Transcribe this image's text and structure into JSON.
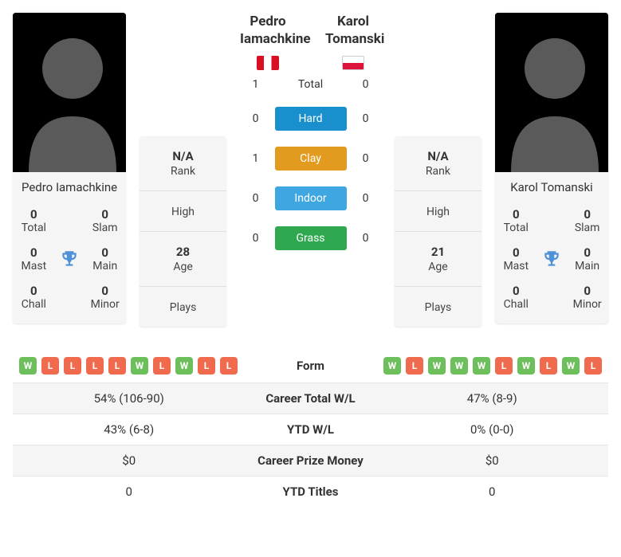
{
  "player_left": {
    "name_full": "Pedro Iamachkine",
    "flag_colors": [
      "#d91023",
      "#ffffff",
      "#d91023"
    ],
    "titles": {
      "total_num": "0",
      "total_lbl": "Total",
      "slam_num": "0",
      "slam_lbl": "Slam",
      "mast_num": "0",
      "mast_lbl": "Mast",
      "main_num": "0",
      "main_lbl": "Main",
      "chall_num": "0",
      "chall_lbl": "Chall",
      "minor_num": "0",
      "minor_lbl": "Minor"
    },
    "info": {
      "rank_val": "N/A",
      "rank_lbl": "Rank",
      "high_val": "",
      "high_lbl": "High",
      "age_val": "28",
      "age_lbl": "Age",
      "plays_val": "",
      "plays_lbl": "Plays"
    }
  },
  "player_right": {
    "name_full": "Karol Tomanski",
    "flag_top": "#ffffff",
    "flag_bottom": "#dc143c",
    "titles": {
      "total_num": "0",
      "total_lbl": "Total",
      "slam_num": "0",
      "slam_lbl": "Slam",
      "mast_num": "0",
      "mast_lbl": "Mast",
      "main_num": "0",
      "main_lbl": "Main",
      "chall_num": "0",
      "chall_lbl": "Chall",
      "minor_num": "0",
      "minor_lbl": "Minor"
    },
    "info": {
      "rank_val": "N/A",
      "rank_lbl": "Rank",
      "high_val": "",
      "high_lbl": "High",
      "age_val": "21",
      "age_lbl": "Age",
      "plays_val": "",
      "plays_lbl": "Plays"
    }
  },
  "h2h": {
    "rows": [
      {
        "left": "1",
        "label": "Total",
        "right": "0",
        "pill_color": null
      },
      {
        "left": "0",
        "label": "Hard",
        "right": "0",
        "pill_color": "#1a8fce"
      },
      {
        "left": "1",
        "label": "Clay",
        "right": "0",
        "pill_color": "#e39b1f"
      },
      {
        "left": "0",
        "label": "Indoor",
        "right": "0",
        "pill_color": "#3ea6e0"
      },
      {
        "left": "0",
        "label": "Grass",
        "right": "0",
        "pill_color": "#2fa84f"
      }
    ]
  },
  "table": {
    "rows": [
      {
        "label": "Form",
        "left_form": [
          "W",
          "L",
          "L",
          "L",
          "L",
          "W",
          "L",
          "W",
          "L",
          "L"
        ],
        "right_form": [
          "W",
          "L",
          "W",
          "W",
          "W",
          "L",
          "W",
          "L",
          "W",
          "L"
        ]
      },
      {
        "label": "Career Total W/L",
        "left": "54% (106-90)",
        "right": "47% (8-9)"
      },
      {
        "label": "YTD W/L",
        "left": "43% (6-8)",
        "right": "0% (0-0)"
      },
      {
        "label": "Career Prize Money",
        "left": "$0",
        "right": "$0"
      },
      {
        "label": "YTD Titles",
        "left": "0",
        "right": "0"
      }
    ]
  },
  "colors": {
    "form_w": "#6cbf5a",
    "form_l": "#f06a4d",
    "trophy": "#4f90d6"
  }
}
